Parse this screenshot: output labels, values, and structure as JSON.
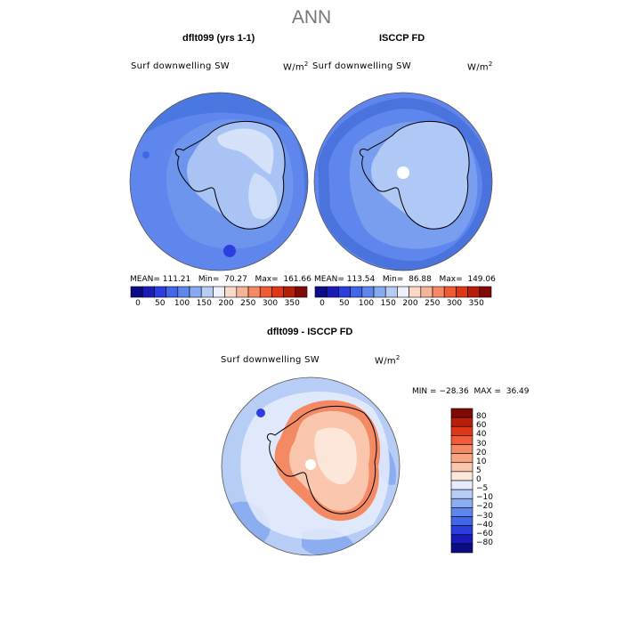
{
  "title": "ANN",
  "panels": [
    {
      "title": "dflt099 (yrs 1-1)",
      "variable": "Surf downwelling SW",
      "units_base": "W/m",
      "units_exp": "2",
      "mean_label": "MEAN=",
      "mean": "111.21",
      "min_label": "Min=",
      "min": "70.27",
      "max_label": "Max=",
      "max": "161.66"
    },
    {
      "title": "ISCCP FD",
      "variable": "Surf downwelling SW",
      "units_base": "W/m",
      "units_exp": "2",
      "mean_label": "MEAN=",
      "mean": "113.54",
      "min_label": "Min=",
      "min": "86.88",
      "max_label": "Max=",
      "max": "149.06"
    },
    {
      "title": "dflt099 - ISCCP FD",
      "variable": "Surf downwelling SW",
      "units_base": "W/m",
      "units_exp": "2",
      "min_label": "MIN =",
      "min": "−28.36",
      "max_label": "MAX =",
      "max": "36.49"
    }
  ],
  "abs_colorbar": {
    "labels": [
      "0",
      "50",
      "100",
      "150",
      "200",
      "250",
      "300",
      "350"
    ],
    "colors": [
      "#0b0b85",
      "#1a1ab8",
      "#2d3ee0",
      "#3f67e8",
      "#5f86ec",
      "#88a9f0",
      "#b6ccf5",
      "#eef0fb",
      "#fbd9c9",
      "#f7b597",
      "#f48a63",
      "#ee5b34",
      "#dd3816",
      "#b61d0a",
      "#7f0a05"
    ]
  },
  "diff_colorbar": {
    "labels": [
      "80",
      "60",
      "40",
      "30",
      "20",
      "10",
      "5",
      "0",
      "−5",
      "−10",
      "−20",
      "−30",
      "−40",
      "−60",
      "−80"
    ],
    "colors": [
      "#7f0a05",
      "#b61d0a",
      "#dd3816",
      "#ee5b34",
      "#f48a63",
      "#f7a582",
      "#fbc6ae",
      "#fde6da",
      "#e6ecfb",
      "#b8cdf5",
      "#8cadf0",
      "#5f86ec",
      "#3f67e8",
      "#2d3ee0",
      "#1a1ab8",
      "#0b0b85"
    ]
  },
  "maps": {
    "ocean_color": "#4a78e0",
    "coast_color": "#000000"
  }
}
